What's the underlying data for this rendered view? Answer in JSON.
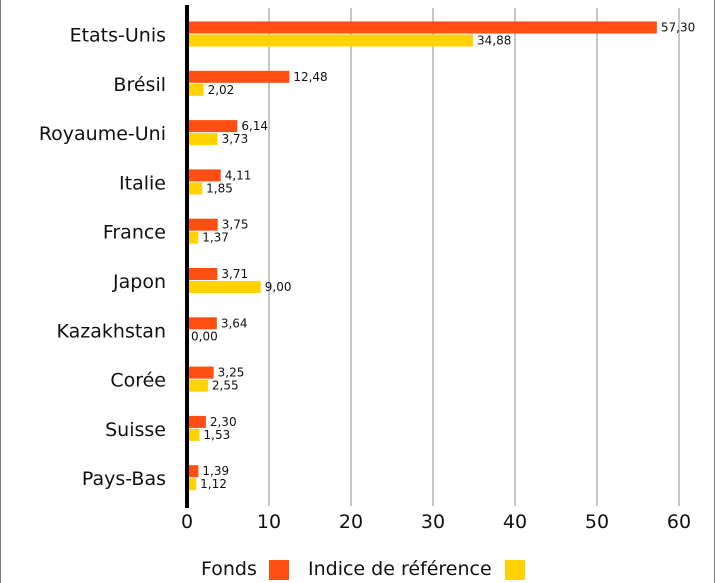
{
  "chart_data": {
    "type": "bar",
    "orientation": "horizontal",
    "categories": [
      "Etats-Unis",
      "Brésil",
      "Royaume-Uni",
      "Italie",
      "France",
      "Japon",
      "Kazakhstan",
      "Corée",
      "Suisse",
      "Pays-Bas"
    ],
    "series": [
      {
        "name": "Fonds",
        "color": "#ff4e12",
        "values": [
          57.3,
          12.48,
          6.14,
          4.11,
          3.75,
          3.71,
          3.64,
          3.25,
          2.3,
          1.39
        ],
        "labels": [
          "57,30",
          "12,48",
          "6,14",
          "4,11",
          "3,75",
          "3,71",
          "3,64",
          "3,25",
          "2,30",
          "1,39"
        ]
      },
      {
        "name": "Indice de référence",
        "color": "#ffd200",
        "values": [
          34.88,
          2.02,
          3.73,
          1.85,
          1.37,
          9.0,
          0.0,
          2.55,
          1.53,
          1.12
        ],
        "labels": [
          "34,88",
          "2,02",
          "3,73",
          "1,85",
          "1,37",
          "9,00",
          "0,00",
          "2,55",
          "1,53",
          "1,12"
        ]
      }
    ],
    "xlim": [
      0,
      60
    ],
    "xticks": [
      "0",
      "10",
      "20",
      "30",
      "40",
      "50",
      "60"
    ],
    "grid": true,
    "legend_position": "bottom"
  }
}
